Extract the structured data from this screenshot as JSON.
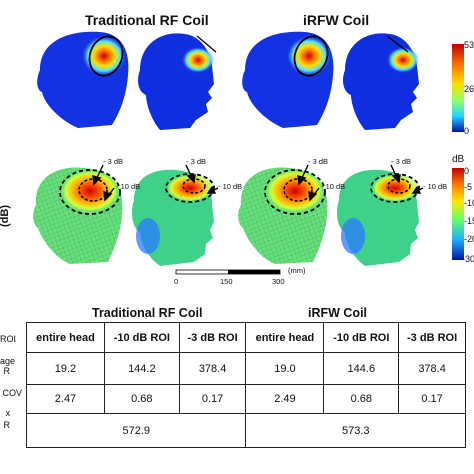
{
  "columns": {
    "left_title": "Traditional RF Coil",
    "right_title": "iRFW Coil"
  },
  "colorbar_top": {
    "ticks": [
      "53",
      "26",
      "0"
    ],
    "colors": [
      "#c00000",
      "#ffd000",
      "#8cff6b",
      "#1fd3ff",
      "#0014a8"
    ]
  },
  "colorbar_bottom": {
    "unit": "dB",
    "ticks": [
      "0",
      "-5",
      "-10",
      "-15",
      "-20",
      "-30"
    ],
    "colors": [
      "#c00000",
      "#ff7a00",
      "#ffe600",
      "#66ff66",
      "#1fb0ff",
      "#0014a8"
    ]
  },
  "side_label": "(dB)",
  "roi_labels": {
    "minus3": "- 3 dB",
    "minus10": "- 10 dB"
  },
  "scalebar": {
    "ticks": [
      "0",
      "150",
      "300"
    ],
    "unit": "(mm)"
  },
  "table": {
    "left_header": "Traditional RF Coil",
    "right_header": "iRFW Coil",
    "row_labels": [
      "ROI",
      "age",
      "R",
      "COV",
      "x",
      "R"
    ],
    "col_headers": [
      "entire head",
      "-10 dB ROI",
      "-3 dB ROI",
      "entire head",
      "-10 dB ROI",
      "-3 dB ROI"
    ],
    "average_row": [
      "19.2",
      "144.2",
      "378.4",
      "19.0",
      "144.6",
      "378.4"
    ],
    "cov_row": [
      "2.47",
      "0.68",
      "0.17",
      "2.49",
      "0.68",
      "0.17"
    ],
    "max_row": [
      "572.9",
      "573.3"
    ]
  }
}
